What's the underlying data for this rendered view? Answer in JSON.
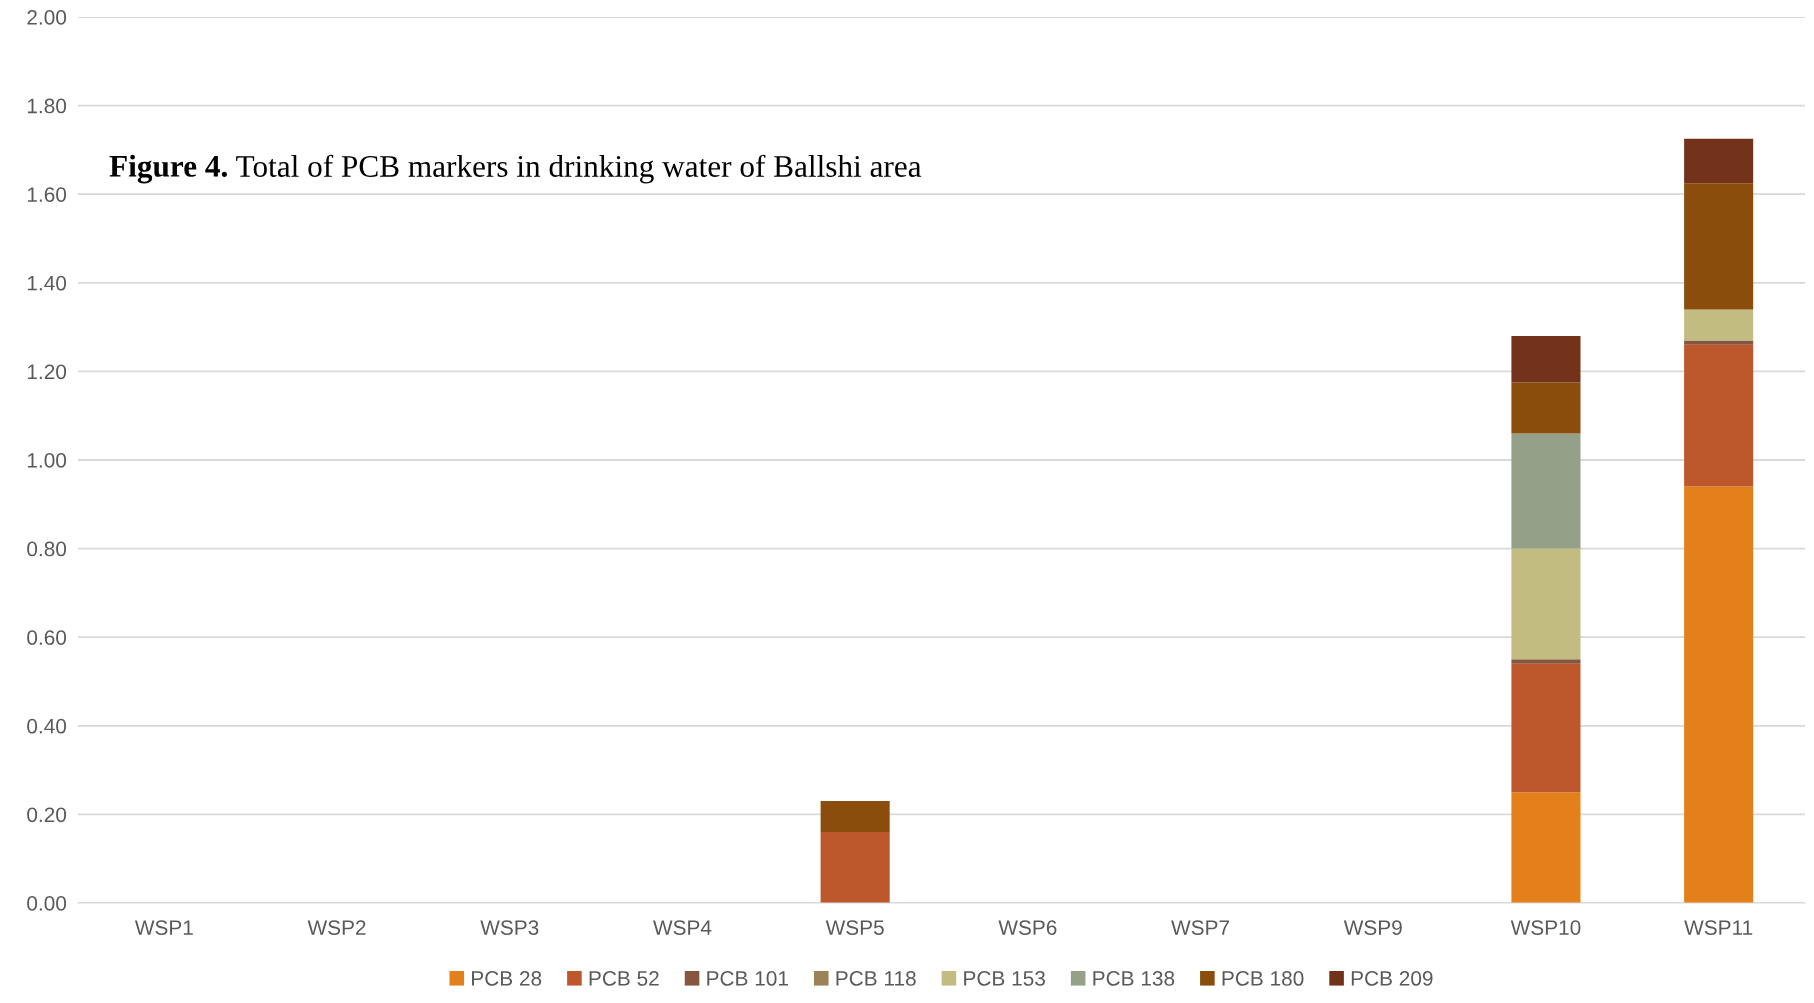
{
  "chart_data": {
    "type": "bar",
    "stacked": true,
    "title": "Figure 4. Total of PCB markers in drinking water of Ballshi area",
    "categories": [
      "WSP1",
      "WSP2",
      "WSP3",
      "WSP4",
      "WSP5",
      "WSP6",
      "WSP7",
      "WSP9",
      "WSP10",
      "WSP11"
    ],
    "series": [
      {
        "name": "PCB 28",
        "color": "#e3801a",
        "values": [
          0,
          0,
          0,
          0,
          0,
          0,
          0,
          0,
          0.25,
          0.94
        ]
      },
      {
        "name": "PCB 52",
        "color": "#bd582c",
        "values": [
          0,
          0,
          0,
          0,
          0.16,
          0,
          0,
          0,
          0.29,
          0.32
        ]
      },
      {
        "name": "PCB 101",
        "color": "#865640",
        "values": [
          0,
          0,
          0,
          0,
          0,
          0,
          0,
          0,
          0.01,
          0.01
        ]
      },
      {
        "name": "PCB 118",
        "color": "#9b8357",
        "values": [
          0,
          0,
          0,
          0,
          0,
          0,
          0,
          0,
          0,
          0
        ]
      },
      {
        "name": "PCB 153",
        "color": "#c2bc80",
        "values": [
          0,
          0,
          0,
          0,
          0,
          0,
          0,
          0,
          0.25,
          0.07
        ]
      },
      {
        "name": "PCB 138",
        "color": "#94a088",
        "values": [
          0,
          0,
          0,
          0,
          0,
          0,
          0,
          0,
          0.26,
          0
        ]
      },
      {
        "name": "PCB 180",
        "color": "#8a4d0b",
        "values": [
          0,
          0,
          0,
          0,
          0.07,
          0,
          0,
          0,
          0.115,
          0.285
        ]
      },
      {
        "name": "PCB 209",
        "color": "#73331a",
        "values": [
          0,
          0,
          0,
          0,
          0,
          0,
          0,
          0,
          0.105,
          0.1
        ]
      }
    ],
    "ylim": [
      0,
      2
    ],
    "yticks": [
      {
        "value": 0,
        "label": "0.00"
      },
      {
        "value": 0.2,
        "label": "0.20"
      },
      {
        "value": 0.4,
        "label": "0.40"
      },
      {
        "value": 0.6,
        "label": "0.60"
      },
      {
        "value": 0.8,
        "label": "0.80"
      },
      {
        "value": 1,
        "label": "1.00"
      },
      {
        "value": 1.2,
        "label": "1.20"
      },
      {
        "value": 1.4,
        "label": "1.40"
      },
      {
        "value": 1.6,
        "label": "1.60"
      },
      {
        "value": 1.8,
        "label": "1.80"
      },
      {
        "value": 2,
        "label": "2.00"
      }
    ],
    "grid": "y",
    "legend": "bottom"
  }
}
